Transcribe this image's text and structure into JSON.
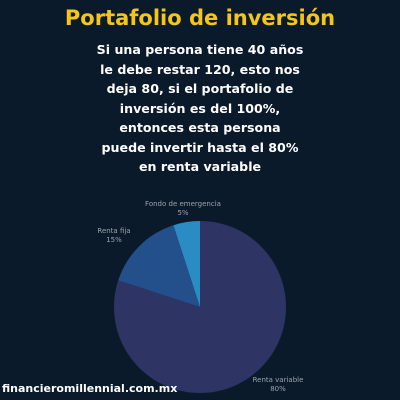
{
  "title": "Portafolio de inversión",
  "body_lines": [
    "Si una persona tiene 40 años",
    "le debe restar 120, esto nos",
    "deja 80, si el portafolio de",
    "inversión es del 100%,",
    "entonces esta persona",
    "puede invertir hasta el 80%",
    "en renta variable"
  ],
  "footer": "financieromillennial.com.mx",
  "colors": {
    "background": "#0b1a2b",
    "title": "#f5c518",
    "text": "#ffffff",
    "label": "#9aa3ad"
  },
  "chart_data": {
    "type": "pie",
    "slices": [
      {
        "label": "Renta variable",
        "value": 80,
        "value_label": "80%",
        "color": "#2e3463"
      },
      {
        "label": "Renta fija",
        "value": 15,
        "value_label": "15%",
        "color": "#23508a"
      },
      {
        "label": "Fondo de emergencia",
        "value": 5,
        "value_label": "5%",
        "color": "#2b8cc4"
      }
    ]
  }
}
